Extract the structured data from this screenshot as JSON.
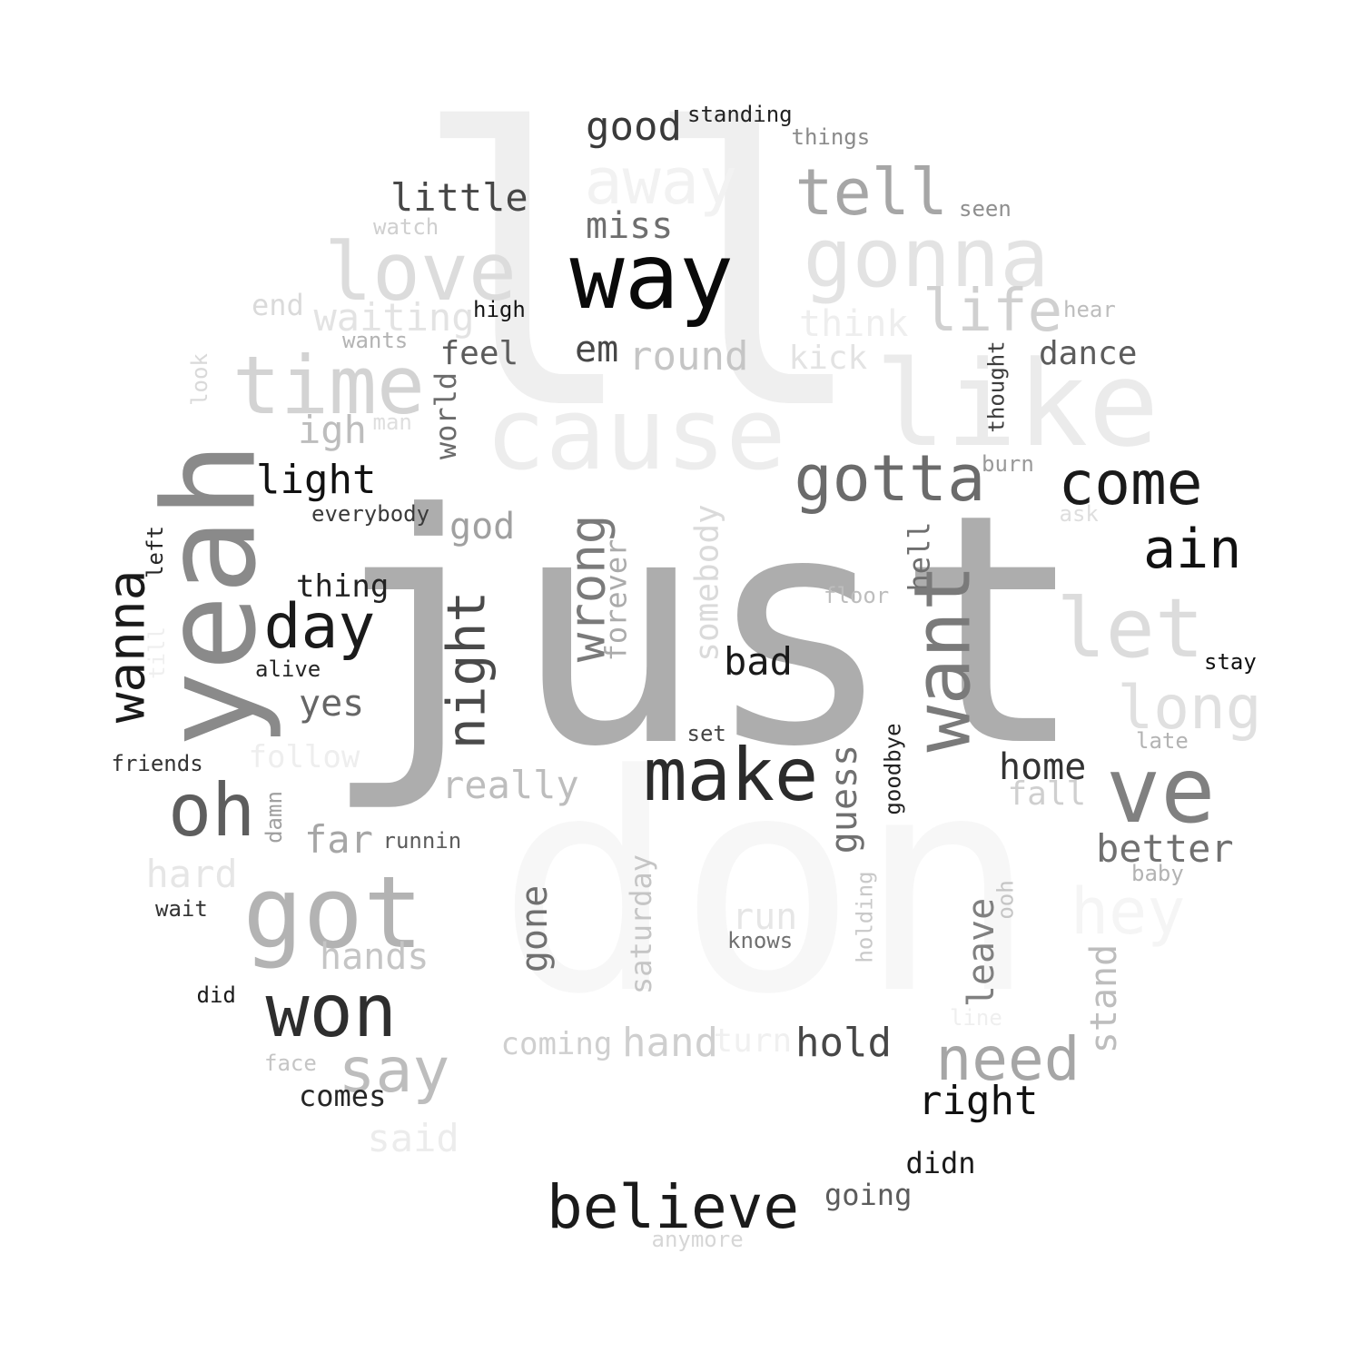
{
  "word_cloud": {
    "words": [
      {
        "text": "ll",
        "color": "#efefef"
      },
      {
        "text": "don",
        "color": "#f7f7f7"
      },
      {
        "text": "just",
        "color": "#adadad"
      },
      {
        "text": "cause",
        "color": "#ededed"
      },
      {
        "text": "like",
        "color": "#ebebeb"
      },
      {
        "text": "yeah",
        "color": "#8a8a8a"
      },
      {
        "text": "way",
        "color": "#0a0a0a"
      },
      {
        "text": "away",
        "color": "#f2f2f2"
      },
      {
        "text": "good",
        "color": "#3a3a3a"
      },
      {
        "text": "standing",
        "color": "#222222"
      },
      {
        "text": "things",
        "color": "#8a8a8a"
      },
      {
        "text": "tell",
        "color": "#a6a6a6"
      },
      {
        "text": "seen",
        "color": "#8f8f8f"
      },
      {
        "text": "little",
        "color": "#474747"
      },
      {
        "text": "miss",
        "color": "#6e6e6e"
      },
      {
        "text": "gonna",
        "color": "#e3e3e3"
      },
      {
        "text": "love",
        "color": "#dcdcdc"
      },
      {
        "text": "watch",
        "color": "#cfcfcf"
      },
      {
        "text": "life",
        "color": "#d0d0d0"
      },
      {
        "text": "hear",
        "color": "#bdbdbd"
      },
      {
        "text": "end",
        "color": "#dadada"
      },
      {
        "text": "waiting",
        "color": "#e3e3e3"
      },
      {
        "text": "high",
        "color": "#141414"
      },
      {
        "text": "think",
        "color": "#eeeeee"
      },
      {
        "text": "wants",
        "color": "#b3b3b3"
      },
      {
        "text": "feel",
        "color": "#5c5c5c"
      },
      {
        "text": "em",
        "color": "#474747"
      },
      {
        "text": "round",
        "color": "#c5c5c5"
      },
      {
        "text": "kick",
        "color": "#e3e3e3"
      },
      {
        "text": "dance",
        "color": "#5c5c5c"
      },
      {
        "text": "time",
        "color": "#d3d3d3"
      },
      {
        "text": "look",
        "color": "#d9d9d9"
      },
      {
        "text": "world",
        "color": "#6b6b6b"
      },
      {
        "text": "thought",
        "color": "#3d3d3d"
      },
      {
        "text": "igh",
        "color": "#bdbdbd"
      },
      {
        "text": "man",
        "color": "#dedede"
      },
      {
        "text": "burn",
        "color": "#999999"
      },
      {
        "text": "gotta",
        "color": "#6b6b6b"
      },
      {
        "text": "come",
        "color": "#1a1a1a"
      },
      {
        "text": "light",
        "color": "#111111"
      },
      {
        "text": "everybody",
        "color": "#3a3a3a"
      },
      {
        "text": "god",
        "color": "#a0a0a0"
      },
      {
        "text": "ask",
        "color": "#dedede"
      },
      {
        "text": "ain",
        "color": "#111111"
      },
      {
        "text": "left",
        "color": "#262626"
      },
      {
        "text": "wanna",
        "color": "#1a1a1a"
      },
      {
        "text": "night",
        "color": "#4a4a4a"
      },
      {
        "text": "wrong",
        "color": "#7a7a7a"
      },
      {
        "text": "forever",
        "color": "#ababab"
      },
      {
        "text": "somebody",
        "color": "#dadada"
      },
      {
        "text": "hell",
        "color": "#6e6e6e"
      },
      {
        "text": "floor",
        "color": "#bdbdbd"
      },
      {
        "text": "let",
        "color": "#dcdcdc"
      },
      {
        "text": "thing",
        "color": "#222222"
      },
      {
        "text": "day",
        "color": "#1a1a1a"
      },
      {
        "text": "till",
        "color": "#efefef"
      },
      {
        "text": "alive",
        "color": "#262626"
      },
      {
        "text": "bad",
        "color": "#1a1a1a"
      },
      {
        "text": "want",
        "color": "#7a7a7a"
      },
      {
        "text": "stay",
        "color": "#111111"
      },
      {
        "text": "long",
        "color": "#e0e0e0"
      },
      {
        "text": "yes",
        "color": "#666666"
      },
      {
        "text": "set",
        "color": "#444444"
      },
      {
        "text": "late",
        "color": "#b3b3b3"
      },
      {
        "text": "friends",
        "color": "#333333"
      },
      {
        "text": "follow",
        "color": "#eeeeee"
      },
      {
        "text": "make",
        "color": "#2b2b2b"
      },
      {
        "text": "goodbye",
        "color": "#222222"
      },
      {
        "text": "home",
        "color": "#333333"
      },
      {
        "text": "really",
        "color": "#bdbdbd"
      },
      {
        "text": "guess",
        "color": "#707070"
      },
      {
        "text": "fall",
        "color": "#cfcfcf"
      },
      {
        "text": "ve",
        "color": "#808080"
      },
      {
        "text": "oh",
        "color": "#5e5e5e"
      },
      {
        "text": "damn",
        "color": "#a0a0a0"
      },
      {
        "text": "far",
        "color": "#a6a6a6"
      },
      {
        "text": "runnin",
        "color": "#5c5c5c"
      },
      {
        "text": "better",
        "color": "#707070"
      },
      {
        "text": "hard",
        "color": "#e6e6e6"
      },
      {
        "text": "baby",
        "color": "#b3b3b3"
      },
      {
        "text": "got",
        "color": "#b3b3b3"
      },
      {
        "text": "hey",
        "color": "#f5f5f5"
      },
      {
        "text": "wait",
        "color": "#333333"
      },
      {
        "text": "saturday",
        "color": "#c5c5c5"
      },
      {
        "text": "holding",
        "color": "#c9c9c9"
      },
      {
        "text": "ooh",
        "color": "#c5c5c5"
      },
      {
        "text": "run",
        "color": "#e6e6e6"
      },
      {
        "text": "gone",
        "color": "#707070"
      },
      {
        "text": "knows",
        "color": "#707070"
      },
      {
        "text": "hands",
        "color": "#c5c5c5"
      },
      {
        "text": "leave",
        "color": "#808080"
      },
      {
        "text": "stand",
        "color": "#bdbdbd"
      },
      {
        "text": "won",
        "color": "#2e2e2e"
      },
      {
        "text": "did",
        "color": "#1a1a1a"
      },
      {
        "text": "line",
        "color": "#efefef"
      },
      {
        "text": "coming",
        "color": "#cfcfcf"
      },
      {
        "text": "hand",
        "color": "#cfcfcf"
      },
      {
        "text": "turn",
        "color": "#f0f0f0"
      },
      {
        "text": "hold",
        "color": "#474747"
      },
      {
        "text": "need",
        "color": "#a6a6a6"
      },
      {
        "text": "say",
        "color": "#bdbdbd"
      },
      {
        "text": "face",
        "color": "#c5c5c5"
      },
      {
        "text": "comes",
        "color": "#262626"
      },
      {
        "text": "right",
        "color": "#111111"
      },
      {
        "text": "said",
        "color": "#ececec"
      },
      {
        "text": "didn",
        "color": "#1a1a1a"
      },
      {
        "text": "going",
        "color": "#5c5c5c"
      },
      {
        "text": "believe",
        "color": "#1a1a1a"
      },
      {
        "text": "anymore",
        "color": "#d6d6d6"
      }
    ]
  }
}
